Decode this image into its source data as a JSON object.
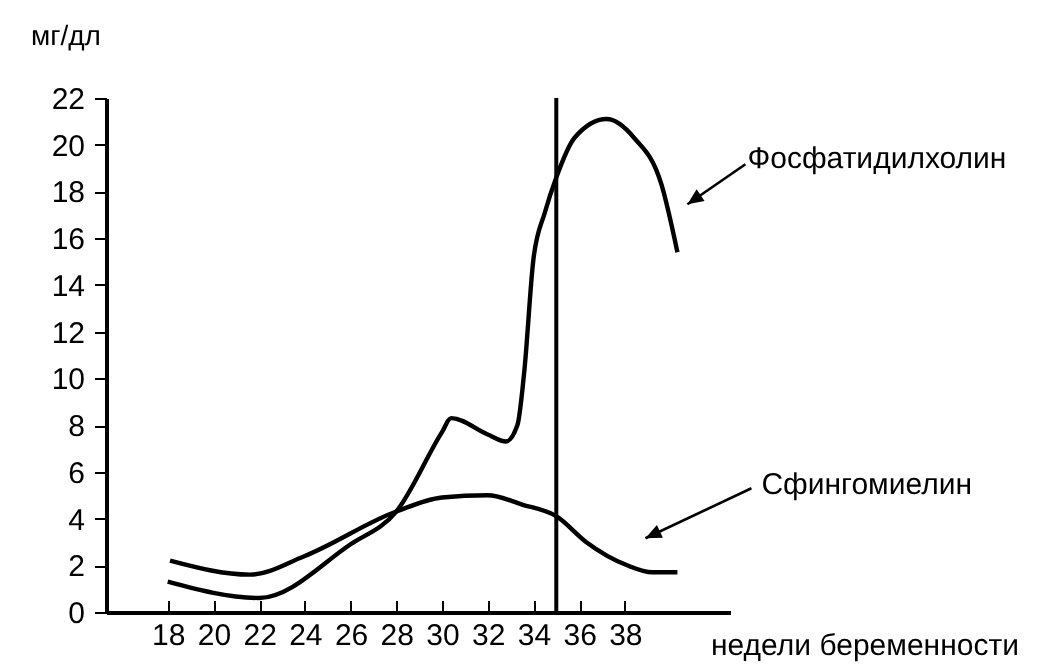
{
  "chart_data": {
    "type": "line",
    "xlabel": "недели беременности",
    "ylabel": "мг/дл",
    "xlim": [
      15.3,
      42.6
    ],
    "ylim": [
      0,
      22
    ],
    "xticks": [
      18,
      20,
      22,
      24,
      26,
      28,
      30,
      32,
      34,
      36,
      38
    ],
    "yticks": [
      0,
      2,
      4,
      6,
      8,
      10,
      12,
      14,
      16,
      18,
      20,
      22
    ],
    "grid": false,
    "marker": "none",
    "line_style": "solid",
    "ref_lines": [
      {
        "axis": "x",
        "value": 35,
        "color": "#000000"
      }
    ],
    "series": [
      {
        "name": "Фосфатидилхолин",
        "color": "#000000",
        "x": [
          18,
          22,
          26,
          28,
          30,
          30.4,
          32,
          32.8,
          33.3,
          33.6,
          34,
          34.5,
          35,
          35.8,
          37.2,
          38.4,
          39.6,
          40.3
        ],
        "values": [
          1.3,
          0.6,
          2.9,
          4.3,
          7.7,
          8.3,
          7.6,
          7.3,
          8.0,
          10.3,
          15.1,
          17.1,
          18.6,
          20.3,
          21.1,
          20.3,
          18.3,
          15.4
        ]
      },
      {
        "name": "Сфингомиелин",
        "color": "#000000",
        "x": [
          18.1,
          21.6,
          24,
          28,
          30,
          32,
          33.5,
          35,
          36.3,
          38.1,
          39.2,
          40.3
        ],
        "values": [
          2.2,
          1.6,
          2.4,
          4.3,
          4.9,
          5.0,
          4.6,
          4.1,
          3.0,
          2.0,
          1.7,
          1.7
        ]
      }
    ]
  }
}
